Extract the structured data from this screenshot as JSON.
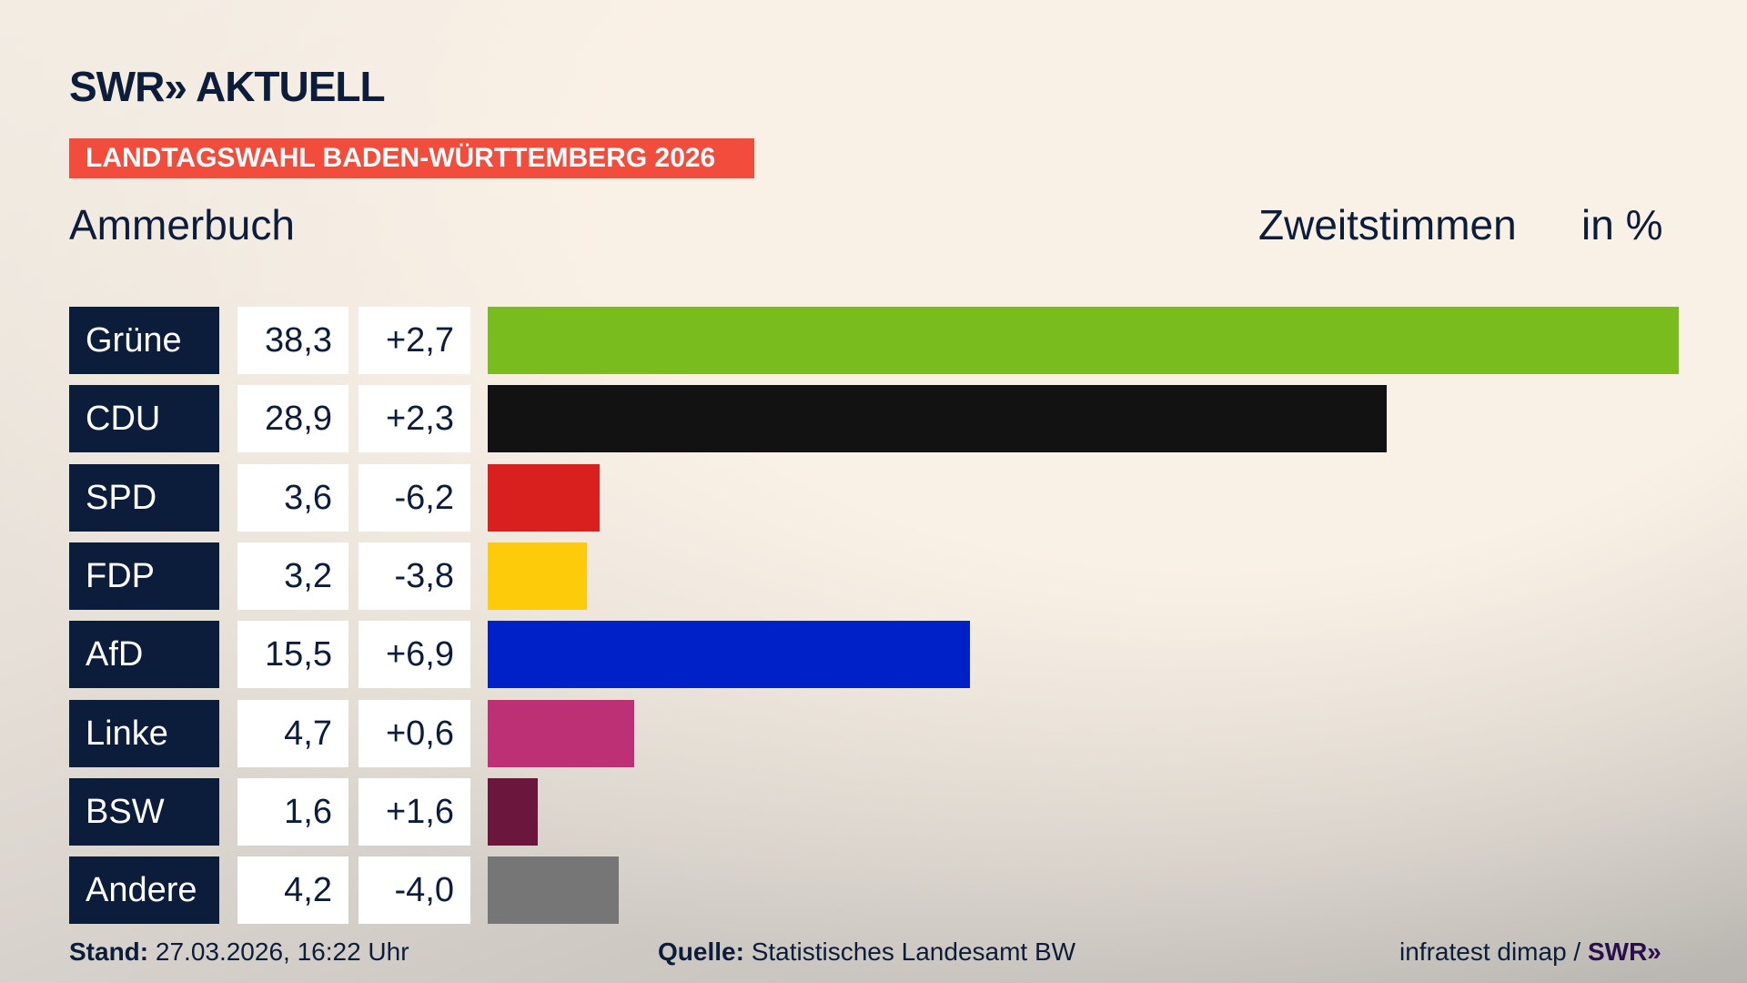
{
  "header": {
    "logo": "SWR» AKTUELL",
    "banner": "LANDTAGSWAHL BADEN-WÜRTTEMBERG 2026",
    "region": "Ammerbuch",
    "vote_type": "Zweitstimmen",
    "unit": "in %"
  },
  "chart_data": {
    "type": "bar",
    "title": "Ammerbuch – Zweitstimmen in %",
    "categories": [
      "Grüne",
      "CDU",
      "SPD",
      "FDP",
      "AfD",
      "Linke",
      "BSW",
      "Andere"
    ],
    "values": [
      38.3,
      28.9,
      3.6,
      3.2,
      15.5,
      4.7,
      1.6,
      4.2
    ],
    "value_labels": [
      "38,3",
      "28,9",
      "3,6",
      "3,2",
      "15,5",
      "4,7",
      "1,6",
      "4,2"
    ],
    "change_labels": [
      "+2,7",
      "+2,3",
      "-6,2",
      "-3,8",
      "+6,9",
      "+0,6",
      "+1,6",
      "-4,0"
    ],
    "changes": [
      2.7,
      2.3,
      -6.2,
      -3.8,
      6.9,
      0.6,
      1.6,
      -4.0
    ],
    "colors": [
      "#78bc1e",
      "#121212",
      "#d9201e",
      "#fdcb0a",
      "#0020c8",
      "#bd3075",
      "#6b173d",
      "#767676"
    ],
    "xlim": [
      0,
      38.3
    ]
  },
  "footer": {
    "stand_label": "Stand:",
    "stand_value": "27.03.2026, 16:22 Uhr",
    "source_label": "Quelle:",
    "source_value": "Statistisches Landesamt BW",
    "credit": "infratest dimap /",
    "credit_logo": "SWR»"
  }
}
